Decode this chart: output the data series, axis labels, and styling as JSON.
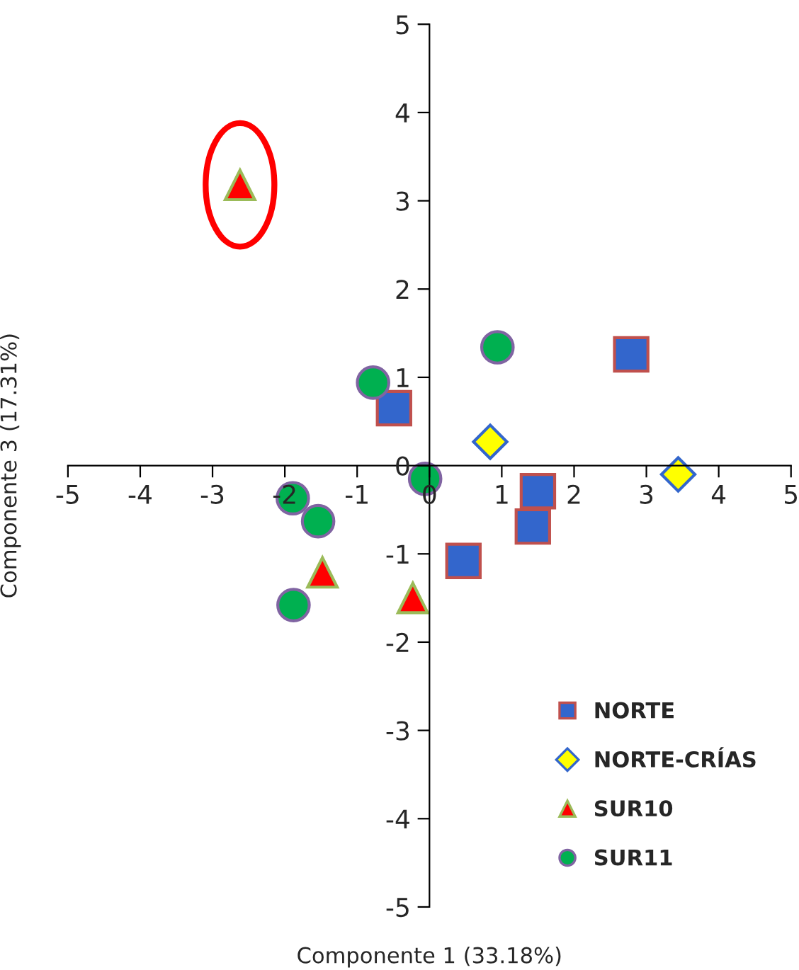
{
  "chart_data": {
    "type": "scatter",
    "xlabel": "Componente 1 (33.18%)",
    "ylabel": "Componente 3 (17.31%)",
    "xlim": [
      -5,
      5
    ],
    "ylim": [
      -5,
      5
    ],
    "xticks": [
      -5,
      -4,
      -3,
      -2,
      -1,
      0,
      1,
      2,
      3,
      4,
      5
    ],
    "yticks": [
      -5,
      -4,
      -3,
      -2,
      -1,
      0,
      1,
      2,
      3,
      4,
      5
    ],
    "grid": false,
    "legend": "bottom right",
    "series": [
      {
        "name": "NORTE",
        "color": "#3366cc",
        "marker": "square",
        "x": [
          -0.49,
          2.79,
          1.5,
          1.43,
          0.47
        ],
        "values": [
          0.65,
          1.26,
          -0.29,
          -0.69,
          -1.08
        ]
      },
      {
        "name": "NORTE-CRÍAS",
        "color": "#ffff00",
        "marker": "diamond",
        "x": [
          0.84,
          3.44
        ],
        "values": [
          0.27,
          -0.1
        ]
      },
      {
        "name": "SUR10",
        "color": "#ff0000",
        "marker": "triangle",
        "x": [
          -2.62,
          -1.48,
          -0.23
        ],
        "values": [
          3.18,
          -1.21,
          -1.5
        ]
      },
      {
        "name": "SUR11",
        "color": "#00b050",
        "marker": "circle",
        "x": [
          -0.78,
          0.94,
          -0.06,
          -1.89,
          -1.54,
          -1.88
        ],
        "values": [
          0.94,
          1.34,
          -0.15,
          -0.37,
          -0.63,
          -1.58
        ]
      }
    ]
  }
}
